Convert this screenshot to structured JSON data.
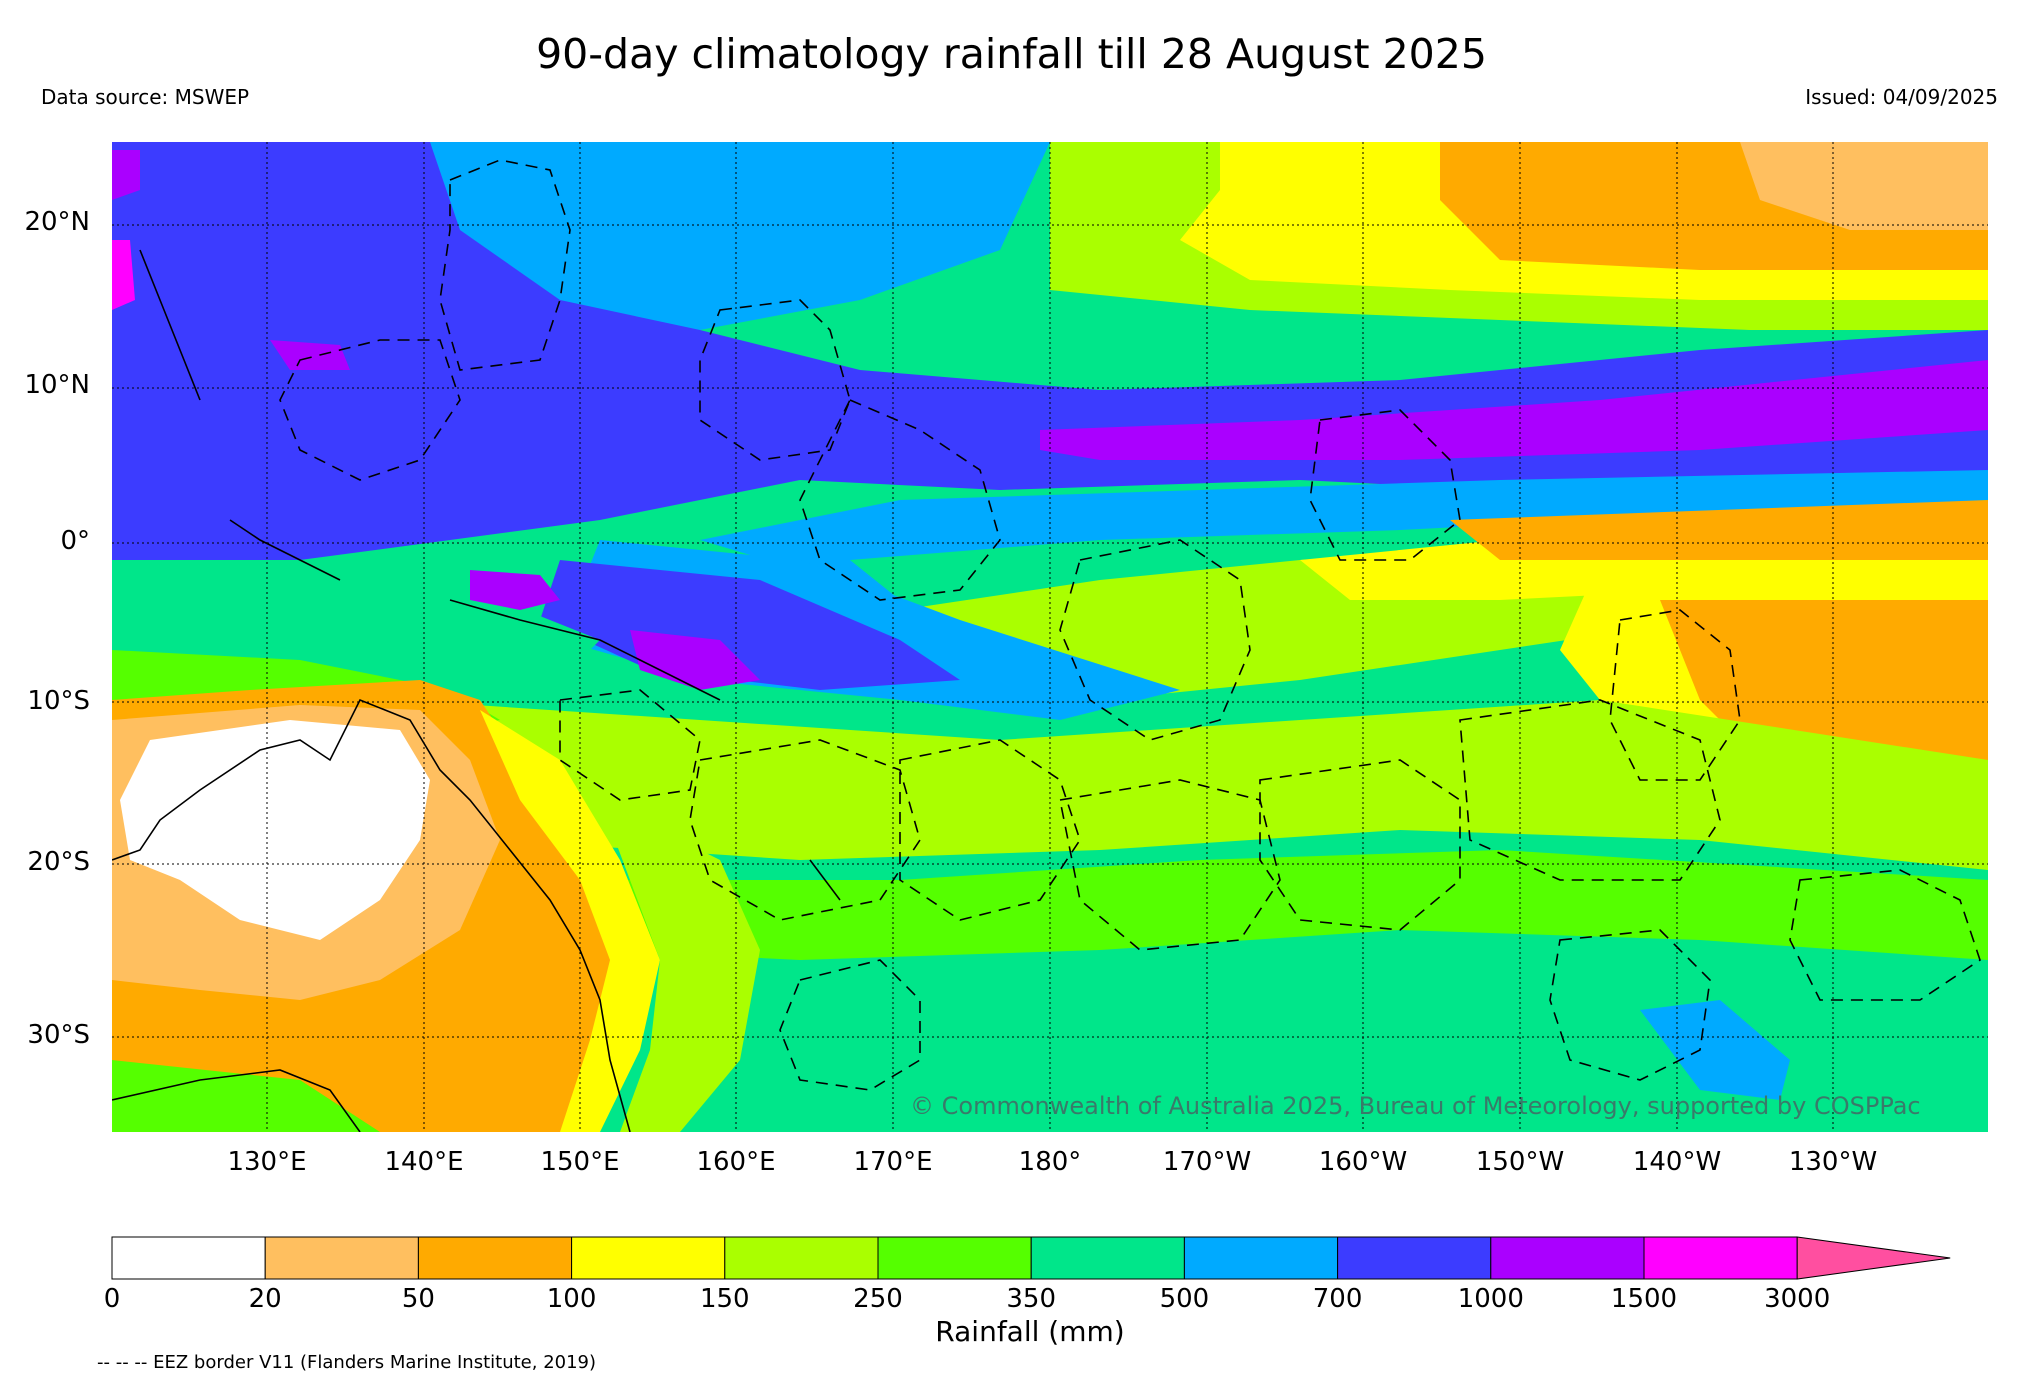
{
  "title": "90-day climatology rainfall till 28 August 2025",
  "data_source": "Data source: MSWEP",
  "issued": "Issued: 04/09/2025",
  "copyright": "© Commonwealth of Australia 2025, Bureau of Meteorology, supported by COSPPac",
  "eez_note": "-- -- -- EEZ border V11 (Flanders Marine Institute, 2019)",
  "lat_labels": [
    "20°N",
    "10°N",
    "0°",
    "10°S",
    "20°S",
    "30°S"
  ],
  "lon_labels": [
    "130°E",
    "140°E",
    "150°E",
    "160°E",
    "170°E",
    "180°",
    "170°W",
    "160°W",
    "150°W",
    "140°W",
    "130°W"
  ],
  "colorbar": {
    "label": "Rainfall (mm)",
    "ticks": [
      "0",
      "20",
      "50",
      "100",
      "150",
      "250",
      "350",
      "500",
      "700",
      "1000",
      "1500",
      "3000"
    ],
    "colors": [
      "#ffffff",
      "#ffbf5f",
      "#ffaa00",
      "#ffff00",
      "#aaff00",
      "#55ff00",
      "#00e68a",
      "#00aaff",
      "#3c3cff",
      "#aa00ff",
      "#ff00ff",
      "#ff4fa0"
    ]
  }
}
